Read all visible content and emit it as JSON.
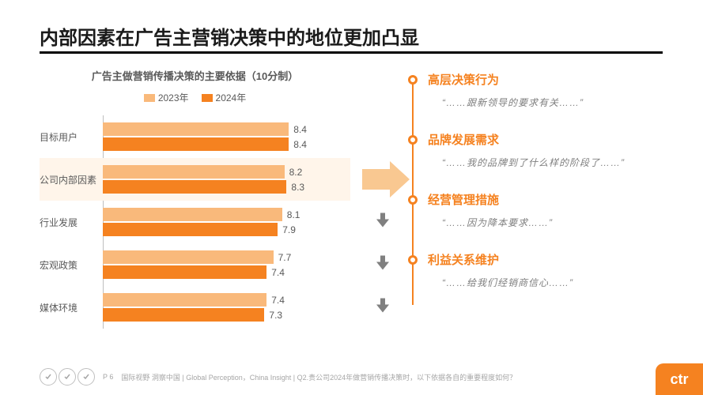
{
  "title": "内部因素在广告主营销决策中的地位更加凸显",
  "chart": {
    "title": "广告主做营销传播决策的主要依据（10分制）",
    "type": "bar",
    "legend": [
      {
        "label": "2023年",
        "color": "#f9b97b"
      },
      {
        "label": "2024年",
        "color": "#f58220"
      }
    ],
    "scale_max": 10,
    "bar_area_width": 280,
    "categories": [
      {
        "label": "目标用户",
        "v2023": 8.4,
        "v2024": 8.4,
        "highlight": false,
        "trend": "none"
      },
      {
        "label": "公司内部因素",
        "v2023": 8.2,
        "v2024": 8.3,
        "highlight": true,
        "trend": "up"
      },
      {
        "label": "行业发展",
        "v2023": 8.1,
        "v2024": 7.9,
        "highlight": false,
        "trend": "down"
      },
      {
        "label": "宏观政策",
        "v2023": 7.7,
        "v2024": 7.4,
        "highlight": false,
        "trend": "down"
      },
      {
        "label": "媒体环境",
        "v2023": 7.4,
        "v2024": 7.3,
        "highlight": false,
        "trend": "down"
      }
    ],
    "bar_color_2023": "#f9b97b",
    "bar_color_2024": "#f58220",
    "highlight_bg": "#fff5ea",
    "up_arrow_color": "#f58220",
    "down_arrow_color": "#808080",
    "big_arrow_color": "#f9c891"
  },
  "points": [
    {
      "title": "高层决策行为",
      "quote": "“……跟新领导的要求有关……”"
    },
    {
      "title": "品牌发展需求",
      "quote": "“……我的品牌到了什么样的阶段了……”"
    },
    {
      "title": "经营管理措施",
      "quote": "“……因为降本要求……”"
    },
    {
      "title": "利益关系维护",
      "quote": "“……给我们经销商信心……”"
    }
  ],
  "accent_color": "#f58220",
  "footer": {
    "page": "P 6",
    "text": "国际视野 洞察中国 | Global Perception，China Insight | Q2.贵公司2024年做营销传播决策时，以下依据各自的重要程度如何？"
  },
  "logo_text": "ctr"
}
